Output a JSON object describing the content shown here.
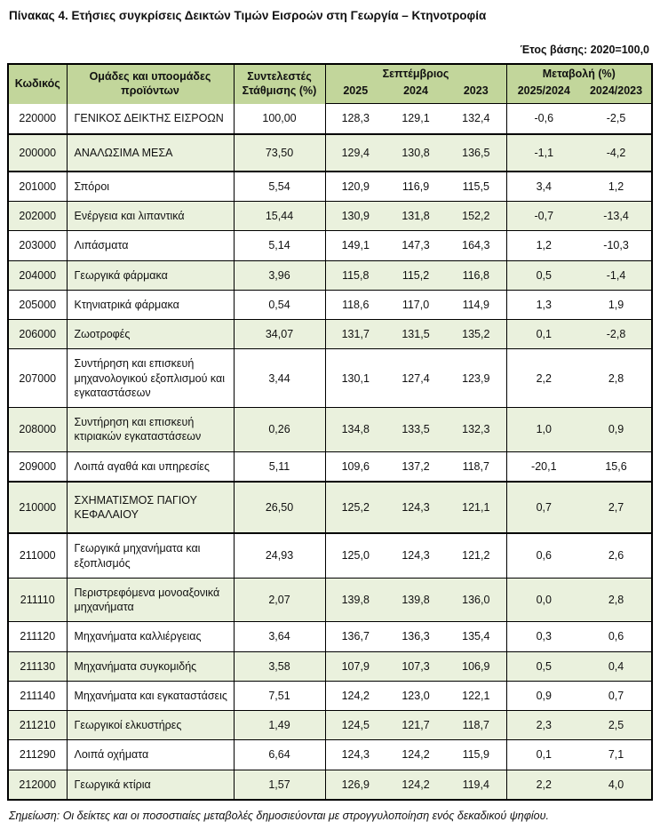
{
  "title": "Πίνακας 4. Ετήσιες συγκρίσεις Δεικτών Τιμών Εισροών στη Γεωργία – Κτηνοτροφία",
  "base_year": "Έτος βάσης: 2020=100,0",
  "colors": {
    "header_bg": "#c2d69b",
    "row_alt_bg": "#eaf1dd",
    "border": "#000000"
  },
  "table": {
    "headers": {
      "code": "Κωδικός",
      "groups": "Ομάδες και υποομάδες προϊόντων",
      "weights": "Συντελεστές Στάθμισης (%)",
      "september": "Σεπτέμβριος",
      "change": "Μεταβολή (%)",
      "years": [
        "2025",
        "2024",
        "2023"
      ],
      "ratios": [
        "2025/2024",
        "2024/2023"
      ]
    },
    "rows": [
      {
        "code": "220000",
        "name": "ΓΕΝΙΚΟΣ ΔΕΙΚΤΗΣ ΕΙΣΡΟΩΝ",
        "weight": "100,00",
        "sep2025": "128,3",
        "sep2024": "129,1",
        "sep2023": "132,4",
        "chg_2025_2024": "-0,6",
        "chg_2024_2023": "-2,5",
        "major": false
      },
      {
        "code": "200000",
        "name": "ΑΝΑΛΩΣΙΜΑ ΜΕΣΑ",
        "weight": "73,50",
        "sep2025": "129,4",
        "sep2024": "130,8",
        "sep2023": "136,5",
        "chg_2025_2024": "-1,1",
        "chg_2024_2023": "-4,2",
        "major": true
      },
      {
        "code": "201000",
        "name": "Σπόροι",
        "weight": "5,54",
        "sep2025": "120,9",
        "sep2024": "116,9",
        "sep2023": "115,5",
        "chg_2025_2024": "3,4",
        "chg_2024_2023": "1,2",
        "major": false
      },
      {
        "code": "202000",
        "name": "Ενέργεια και λιπαντικά",
        "weight": "15,44",
        "sep2025": "130,9",
        "sep2024": "131,8",
        "sep2023": "152,2",
        "chg_2025_2024": "-0,7",
        "chg_2024_2023": "-13,4",
        "major": false
      },
      {
        "code": "203000",
        "name": "Λιπάσματα",
        "weight": "5,14",
        "sep2025": "149,1",
        "sep2024": "147,3",
        "sep2023": "164,3",
        "chg_2025_2024": "1,2",
        "chg_2024_2023": "-10,3",
        "major": false
      },
      {
        "code": "204000",
        "name": "Γεωργικά φάρμακα",
        "weight": "3,96",
        "sep2025": "115,8",
        "sep2024": "115,2",
        "sep2023": "116,8",
        "chg_2025_2024": "0,5",
        "chg_2024_2023": "-1,4",
        "major": false
      },
      {
        "code": "205000",
        "name": "Κτηνιατρικά φάρμακα",
        "weight": "0,54",
        "sep2025": "118,6",
        "sep2024": "117,0",
        "sep2023": "114,9",
        "chg_2025_2024": "1,3",
        "chg_2024_2023": "1,9",
        "major": false
      },
      {
        "code": "206000",
        "name": "Ζωοτροφές",
        "weight": "34,07",
        "sep2025": "131,7",
        "sep2024": "131,5",
        "sep2023": "135,2",
        "chg_2025_2024": "0,1",
        "chg_2024_2023": "-2,8",
        "major": false
      },
      {
        "code": "207000",
        "name": "Συντήρηση και επισκευή μηχανολογικού εξοπλισμού και εγκαταστάσεων",
        "weight": "3,44",
        "sep2025": "130,1",
        "sep2024": "127,4",
        "sep2023": "123,9",
        "chg_2025_2024": "2,2",
        "chg_2024_2023": "2,8",
        "major": false
      },
      {
        "code": "208000",
        "name": "Συντήρηση και επισκευή κτιριακών εγκαταστάσεων",
        "weight": "0,26",
        "sep2025": "134,8",
        "sep2024": "133,5",
        "sep2023": "132,3",
        "chg_2025_2024": "1,0",
        "chg_2024_2023": "0,9",
        "major": false
      },
      {
        "code": "209000",
        "name": "Λοιπά αγαθά και υπηρεσίες",
        "weight": "5,11",
        "sep2025": "109,6",
        "sep2024": "137,2",
        "sep2023": "118,7",
        "chg_2025_2024": "-20,1",
        "chg_2024_2023": "15,6",
        "major": false
      },
      {
        "code": "210000",
        "name": "ΣΧΗΜΑΤΙΣΜΟΣ ΠΑΓΙΟΥ ΚΕΦΑΛΑΙΟΥ",
        "weight": "26,50",
        "sep2025": "125,2",
        "sep2024": "124,3",
        "sep2023": "121,1",
        "chg_2025_2024": "0,7",
        "chg_2024_2023": "2,7",
        "major": true
      },
      {
        "code": "211000",
        "name": "Γεωργικά μηχανήματα και εξοπλισμός",
        "weight": "24,93",
        "sep2025": "125,0",
        "sep2024": "124,3",
        "sep2023": "121,2",
        "chg_2025_2024": "0,6",
        "chg_2024_2023": "2,6",
        "major": false
      },
      {
        "code": "211110",
        "name": "Περιστρεφόμενα μονοαξονικά μηχανήματα",
        "weight": "2,07",
        "sep2025": "139,8",
        "sep2024": "139,8",
        "sep2023": "136,0",
        "chg_2025_2024": "0,0",
        "chg_2024_2023": "2,8",
        "major": false
      },
      {
        "code": "211120",
        "name": "Μηχανήματα καλλιέργειας",
        "weight": "3,64",
        "sep2025": "136,7",
        "sep2024": "136,3",
        "sep2023": "135,4",
        "chg_2025_2024": "0,3",
        "chg_2024_2023": "0,6",
        "major": false
      },
      {
        "code": "211130",
        "name": "Μηχανήματα συγκομιδής",
        "weight": "3,58",
        "sep2025": "107,9",
        "sep2024": "107,3",
        "sep2023": "106,9",
        "chg_2025_2024": "0,5",
        "chg_2024_2023": "0,4",
        "major": false
      },
      {
        "code": "211140",
        "name": "Μηχανήματα και εγκαταστάσεις",
        "weight": "7,51",
        "sep2025": "124,2",
        "sep2024": "123,0",
        "sep2023": "122,1",
        "chg_2025_2024": "0,9",
        "chg_2024_2023": "0,7",
        "major": false
      },
      {
        "code": "211210",
        "name": "Γεωργικοί ελκυστήρες",
        "weight": "1,49",
        "sep2025": "124,5",
        "sep2024": "121,7",
        "sep2023": "118,7",
        "chg_2025_2024": "2,3",
        "chg_2024_2023": "2,5",
        "major": false
      },
      {
        "code": "211290",
        "name": "Λοιπά οχήματα",
        "weight": "6,64",
        "sep2025": "124,3",
        "sep2024": "124,2",
        "sep2023": "115,9",
        "chg_2025_2024": "0,1",
        "chg_2024_2023": "7,1",
        "major": false
      },
      {
        "code": "212000",
        "name": "Γεωργικά κτίρια",
        "weight": "1,57",
        "sep2025": "126,9",
        "sep2024": "124,2",
        "sep2023": "119,4",
        "chg_2025_2024": "2,2",
        "chg_2024_2023": "4,0",
        "major": false
      }
    ]
  },
  "note": "Σημείωση: Οι δείκτες και οι ποσοστιαίες μεταβολές δημοσιεύονται με στρογγυλοποίηση ενός δεκαδικού ψηφίου."
}
